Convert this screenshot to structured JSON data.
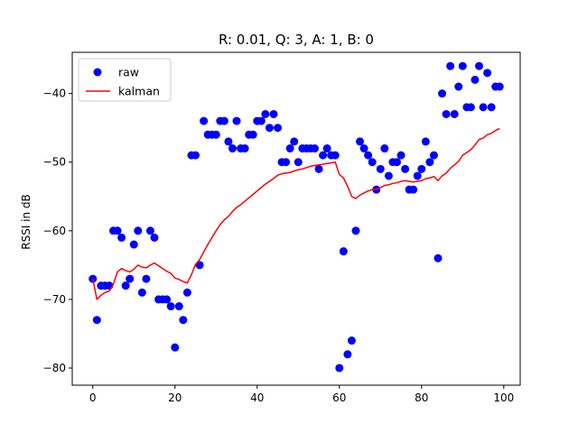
{
  "chart_data": {
    "type": "scatter",
    "title": "R: 0.01, Q: 3, A: 1, B: 0",
    "xlabel": "",
    "ylabel": "RSSI in dB",
    "xlim": [
      -5,
      104
    ],
    "ylim": [
      -82.5,
      -34
    ],
    "xticks": [
      0,
      20,
      40,
      60,
      80,
      100
    ],
    "yticks": [
      -80,
      -70,
      -60,
      -50,
      -40
    ],
    "grid": false,
    "legend_placement": "top-left",
    "series": [
      {
        "name": "raw",
        "style": "markers",
        "color": "#0000ff",
        "x": [
          0,
          1,
          2,
          3,
          4,
          5,
          6,
          7,
          8,
          9,
          10,
          11,
          12,
          13,
          14,
          15,
          16,
          17,
          18,
          19,
          20,
          21,
          22,
          23,
          24,
          25,
          26,
          27,
          28,
          29,
          30,
          31,
          32,
          33,
          34,
          35,
          36,
          37,
          38,
          39,
          40,
          41,
          42,
          43,
          44,
          45,
          46,
          47,
          48,
          49,
          50,
          51,
          52,
          53,
          54,
          55,
          56,
          57,
          58,
          59,
          60,
          61,
          62,
          63,
          64,
          65,
          66,
          67,
          68,
          69,
          70,
          71,
          72,
          73,
          74,
          75,
          76,
          77,
          78,
          79,
          80,
          81,
          82,
          83,
          84,
          85,
          86,
          87,
          88,
          89,
          90,
          91,
          92,
          93,
          94,
          95,
          96,
          97,
          98,
          99
        ],
        "y": [
          -67,
          -73,
          -68,
          -68,
          -68,
          -60,
          -60,
          -61,
          -68,
          -67,
          -62,
          -60,
          -69,
          -67,
          -60,
          -61,
          -70,
          -70,
          -70,
          -71,
          -77,
          -71,
          -73,
          -69,
          -49,
          -49,
          -65,
          -44,
          -46,
          -46,
          -46,
          -44,
          -44,
          -47,
          -48,
          -44,
          -48,
          -48,
          -46,
          -46,
          -44,
          -44,
          -43,
          -45,
          -43,
          -45,
          -50,
          -50,
          -48,
          -47,
          -50,
          -48,
          -48,
          -48,
          -48,
          -51,
          -49,
          -48,
          -49,
          -49,
          -80,
          -63,
          -78,
          -76,
          -60,
          -47,
          -48,
          -49,
          -50,
          -54,
          -51,
          -48,
          -52,
          -50,
          -50,
          -49,
          -51,
          -54,
          -54,
          -52,
          -51,
          -47,
          -50,
          -49,
          -64,
          -40,
          -43,
          -36,
          -43,
          -39,
          -36,
          -42,
          -42,
          -38,
          -36,
          -42,
          -37,
          -42,
          -39,
          -39
        ]
      },
      {
        "name": "kalman",
        "style": "line",
        "color": "#ff0000",
        "x": [
          0,
          1,
          2,
          3,
          4,
          5,
          6,
          7,
          8,
          9,
          10,
          11,
          12,
          13,
          14,
          15,
          16,
          17,
          18,
          19,
          20,
          21,
          22,
          23,
          24,
          25,
          26,
          27,
          28,
          29,
          30,
          31,
          32,
          33,
          34,
          35,
          36,
          37,
          38,
          39,
          40,
          41,
          42,
          43,
          44,
          45,
          46,
          47,
          48,
          49,
          50,
          51,
          52,
          53,
          54,
          55,
          56,
          57,
          58,
          59,
          60,
          61,
          62,
          63,
          64,
          65,
          66,
          67,
          68,
          69,
          70,
          71,
          72,
          73,
          74,
          75,
          76,
          77,
          78,
          79,
          80,
          81,
          82,
          83,
          84,
          85,
          86,
          87,
          88,
          89,
          90,
          91,
          92,
          93,
          94,
          95,
          96,
          97,
          98,
          99
        ],
        "y": [
          -67.0,
          -70.0,
          -69.4,
          -69.0,
          -68.8,
          -67.8,
          -66.0,
          -65.5,
          -65.8,
          -66.0,
          -65.6,
          -65.0,
          -65.3,
          -65.4,
          -65.0,
          -64.7,
          -65.1,
          -65.5,
          -65.9,
          -66.2,
          -66.9,
          -67.1,
          -67.4,
          -67.6,
          -66.4,
          -64.9,
          -64.2,
          -63.1,
          -62.0,
          -61.0,
          -60.0,
          -59.1,
          -58.4,
          -57.9,
          -57.2,
          -56.6,
          -56.2,
          -55.7,
          -55.2,
          -54.7,
          -54.2,
          -53.7,
          -53.2,
          -52.8,
          -52.4,
          -51.9,
          -51.7,
          -51.6,
          -51.5,
          -51.3,
          -51.1,
          -51.0,
          -50.8,
          -50.6,
          -50.5,
          -50.4,
          -50.3,
          -50.2,
          -50.1,
          -50.0,
          -51.8,
          -52.3,
          -53.5,
          -55.0,
          -55.3,
          -54.8,
          -54.5,
          -54.2,
          -54.0,
          -54.0,
          -53.7,
          -53.4,
          -53.3,
          -53.1,
          -53.0,
          -52.8,
          -52.7,
          -52.8,
          -52.9,
          -52.8,
          -52.7,
          -52.4,
          -52.3,
          -52.1,
          -52.7,
          -52.0,
          -51.6,
          -50.9,
          -50.4,
          -49.9,
          -49.0,
          -48.6,
          -48.2,
          -47.5,
          -46.7,
          -46.5,
          -46.0,
          -45.8,
          -45.4,
          -45.1
        ]
      }
    ]
  }
}
